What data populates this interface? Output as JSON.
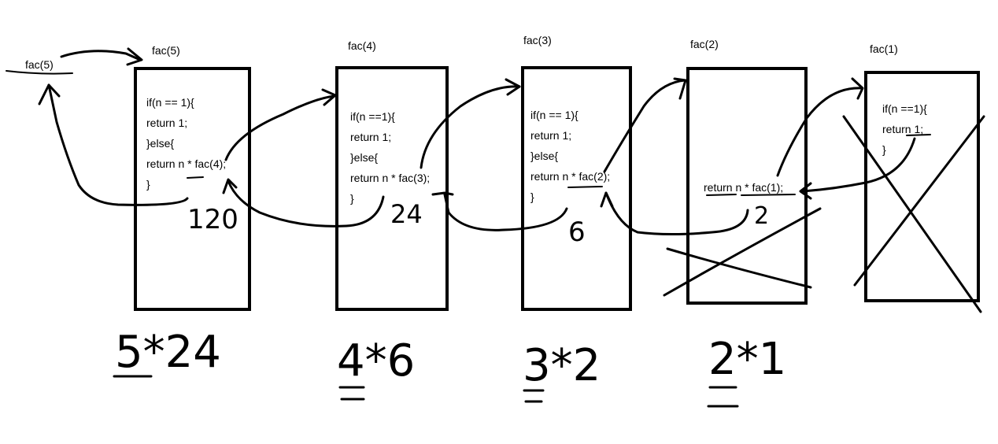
{
  "caller_label": "fac(5)",
  "frames": [
    {
      "title": "fac(5)",
      "code": [
        "if(n == 1){",
        "return 1;",
        "}else{",
        "return n * fac(4);",
        "}"
      ]
    },
    {
      "title": "fac(4)",
      "code": [
        "if(n ==1){",
        "return 1;",
        "}else{",
        "return n * fac(3);",
        "}"
      ]
    },
    {
      "title": "fac(3)",
      "code": [
        "if(n == 1){",
        "return 1;",
        "}else{",
        "return n * fac(2);",
        "}"
      ]
    },
    {
      "title": "fac(2)",
      "code": [
        "return n * fac(1);"
      ]
    },
    {
      "title": "fac(1)",
      "code": [
        "if(n ==1){",
        "return 1;",
        "}"
      ]
    }
  ],
  "return_values": [
    "120",
    "24",
    "6",
    "2"
  ],
  "products": [
    "5*24",
    "4*6",
    "3*2",
    "2*1"
  ]
}
